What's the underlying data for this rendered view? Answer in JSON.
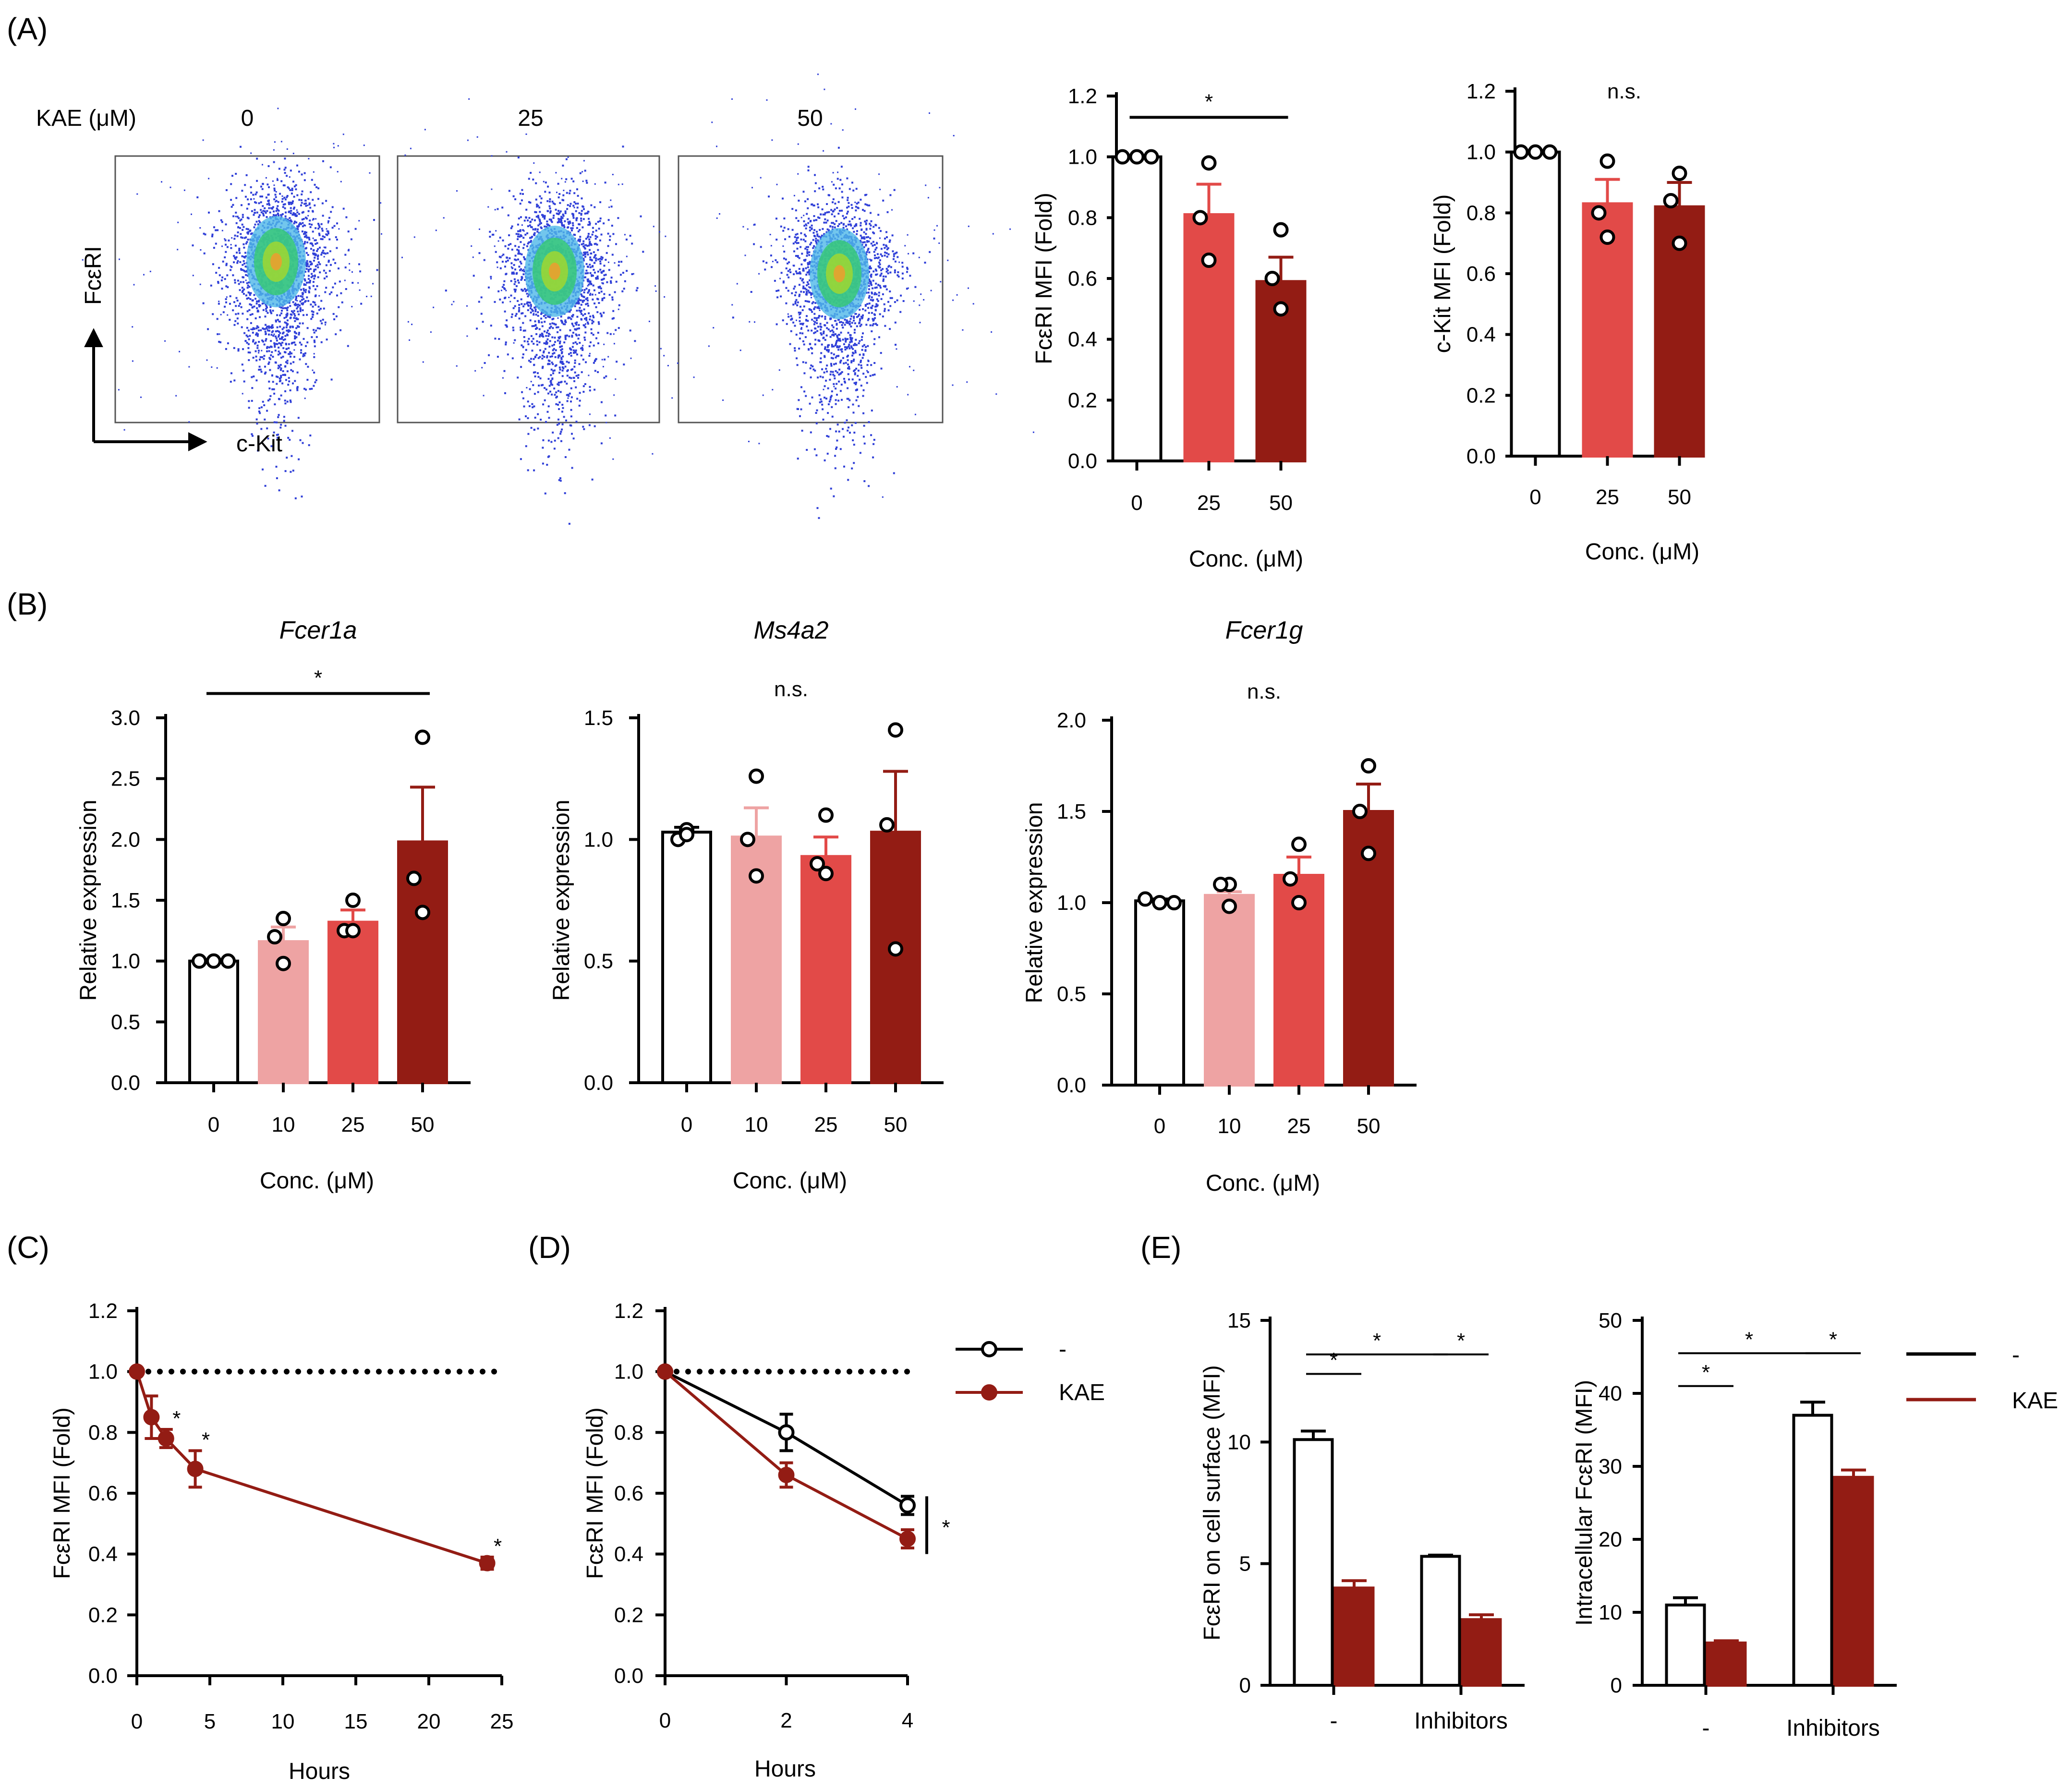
{
  "figure": {
    "panel_labels": {
      "A": "(A)",
      "B": "(B)",
      "C": "(C)",
      "D": "(D)",
      "E": "(E)"
    },
    "flow": {
      "kae_label": "KAE (μM)",
      "concs": [
        "0",
        "25",
        "50"
      ],
      "y_label": "FcεRI",
      "x_label": "c-Kit"
    }
  },
  "colors": {
    "white": "#ffffff",
    "light": "#eea3a3",
    "mid": "#e24a48",
    "dark": "#931c14",
    "black": "#000000"
  },
  "chart_data": [
    {
      "id": "a1",
      "type": "bar",
      "panel": "A",
      "ylabel": "FcεRI MFI (Fold)",
      "xlabel": "Conc. (μM)",
      "categories": [
        "0",
        "25",
        "50"
      ],
      "values": [
        1.0,
        0.81,
        0.59
      ],
      "errors": [
        0.0,
        0.1,
        0.08
      ],
      "points": [
        [
          1.0,
          1.0,
          1.0
        ],
        [
          0.98,
          0.8,
          0.66
        ],
        [
          0.76,
          0.6,
          0.5
        ]
      ],
      "colors": [
        "white",
        "mid",
        "dark"
      ],
      "ylim": [
        0,
        1.2
      ],
      "yticks": [
        "0.0",
        "0.2",
        "0.4",
        "0.6",
        "0.8",
        "1.0",
        "1.2"
      ],
      "sig": [
        {
          "from": 0,
          "to": 2,
          "y": 1.13,
          "label": "*"
        }
      ]
    },
    {
      "id": "a2",
      "type": "bar",
      "panel": "A",
      "ylabel": "c-Kit MFI (Fold)",
      "xlabel": "Conc. (μM)",
      "categories": [
        "0",
        "25",
        "50"
      ],
      "values": [
        1.0,
        0.83,
        0.82
      ],
      "errors": [
        0.0,
        0.08,
        0.08
      ],
      "points": [
        [
          1.0,
          1.0,
          1.0
        ],
        [
          0.97,
          0.8,
          0.72
        ],
        [
          0.93,
          0.84,
          0.7
        ]
      ],
      "colors": [
        "white",
        "mid",
        "dark"
      ],
      "ylim": [
        0,
        1.2
      ],
      "yticks": [
        "0.0",
        "0.2",
        "0.4",
        "0.6",
        "0.8",
        "1.0",
        "1.2"
      ],
      "sig_text": "n.s."
    },
    {
      "id": "b1",
      "type": "bar",
      "panel": "B",
      "title": "Fcer1a",
      "ylabel": "Relative expression",
      "xlabel": "Conc. (μM)",
      "categories": [
        "0",
        "10",
        "25",
        "50"
      ],
      "values": [
        1.0,
        1.16,
        1.32,
        1.98
      ],
      "errors": [
        0.0,
        0.12,
        0.1,
        0.45
      ],
      "points": [
        [
          1.0,
          1.0,
          1.0
        ],
        [
          1.35,
          1.2,
          0.98
        ],
        [
          1.5,
          1.25,
          1.25
        ],
        [
          2.84,
          1.68,
          1.4
        ]
      ],
      "colors": [
        "white",
        "light",
        "mid",
        "dark"
      ],
      "ylim": [
        0,
        3.0
      ],
      "yticks": [
        "0.0",
        "0.5",
        "1.0",
        "1.5",
        "2.0",
        "2.5",
        "3.0"
      ],
      "sig": [
        {
          "from": 0,
          "to": 3,
          "y": 3.2,
          "label": "*"
        }
      ]
    },
    {
      "id": "b2",
      "type": "bar",
      "panel": "B",
      "title": "Ms4a2",
      "ylabel": "Relative expression",
      "xlabel": "Conc. (μM)",
      "categories": [
        "0",
        "10",
        "25",
        "50"
      ],
      "values": [
        1.03,
        1.01,
        0.93,
        1.03
      ],
      "errors": [
        0.02,
        0.12,
        0.08,
        0.25
      ],
      "points": [
        [
          1.04,
          1.0,
          1.02
        ],
        [
          1.26,
          1.0,
          0.85
        ],
        [
          1.1,
          0.9,
          0.86
        ],
        [
          1.45,
          1.06,
          0.55
        ]
      ],
      "colors": [
        "white",
        "light",
        "mid",
        "dark"
      ],
      "ylim": [
        0,
        1.5
      ],
      "yticks": [
        "0.0",
        "0.5",
        "1.0",
        "1.5"
      ],
      "sig_text": "n.s."
    },
    {
      "id": "b3",
      "type": "bar",
      "panel": "B",
      "title": "Fcer1g",
      "ylabel": "Relative expression",
      "xlabel": "Conc. (μM)",
      "categories": [
        "0",
        "10",
        "25",
        "50"
      ],
      "values": [
        1.01,
        1.04,
        1.15,
        1.5
      ],
      "errors": [
        0.01,
        0.02,
        0.1,
        0.15
      ],
      "points": [
        [
          1.02,
          1.0,
          1.0
        ],
        [
          1.1,
          1.1,
          0.98
        ],
        [
          1.32,
          1.13,
          1.0
        ],
        [
          1.75,
          1.5,
          1.27
        ]
      ],
      "colors": [
        "white",
        "light",
        "mid",
        "dark"
      ],
      "ylim": [
        0,
        2.0
      ],
      "yticks": [
        "0.0",
        "0.5",
        "1.0",
        "1.5",
        "2.0"
      ],
      "sig_text": "n.s."
    },
    {
      "id": "c",
      "type": "line",
      "panel": "C",
      "ylabel": "FcεRI MFI (Fold)",
      "xlabel": "Hours",
      "xlim": [
        0,
        25
      ],
      "xticks": [
        "0",
        "5",
        "10",
        "15",
        "20",
        "25"
      ],
      "ylim": [
        0,
        1.2
      ],
      "yticks": [
        "0.0",
        "0.2",
        "0.4",
        "0.6",
        "0.8",
        "1.0",
        "1.2"
      ],
      "reference_y": 1.0,
      "series": [
        {
          "name": "KAE",
          "color": "dark",
          "x": [
            0,
            1,
            2,
            4,
            24
          ],
          "y": [
            1.0,
            0.85,
            0.78,
            0.68,
            0.37
          ],
          "errors": [
            0.0,
            0.07,
            0.03,
            0.06,
            0.02
          ],
          "sig": [
            "",
            "",
            "*",
            "*",
            "*"
          ]
        }
      ]
    },
    {
      "id": "d",
      "type": "line",
      "panel": "D",
      "ylabel": "FcεRI MFI (Fold)",
      "xlabel": "Hours",
      "xlim": [
        0,
        4
      ],
      "xticks": [
        "0",
        "2",
        "4"
      ],
      "ylim": [
        0,
        1.2
      ],
      "yticks": [
        "0.0",
        "0.2",
        "0.4",
        "0.6",
        "0.8",
        "1.0",
        "1.2"
      ],
      "reference_y": 1.0,
      "series": [
        {
          "name": "-",
          "color": "black",
          "open": true,
          "x": [
            0,
            2,
            4
          ],
          "y": [
            1.0,
            0.8,
            0.56
          ],
          "errors": [
            0.0,
            0.06,
            0.03
          ]
        },
        {
          "name": "KAE",
          "color": "dark",
          "x": [
            0,
            2,
            4
          ],
          "y": [
            1.0,
            0.66,
            0.45
          ],
          "errors": [
            0.0,
            0.04,
            0.03
          ]
        }
      ],
      "bracket_label": "*",
      "legend": [
        "-",
        "KAE"
      ]
    },
    {
      "id": "e1",
      "type": "bar",
      "panel": "E",
      "ylabel": "FcεRI on cell surface (MFI)",
      "groups": [
        "-",
        "Inhibitors"
      ],
      "series": [
        {
          "name": "-",
          "values": [
            10.1,
            5.3
          ],
          "errors": [
            0.35,
            0.05
          ]
        },
        {
          "name": "KAE",
          "values": [
            4.0,
            2.7
          ],
          "errors": [
            0.3,
            0.2
          ]
        }
      ],
      "ylim": [
        0,
        15
      ],
      "yticks": [
        "0",
        "5",
        "10",
        "15"
      ],
      "sig": [
        {
          "label": "*",
          "y": 12.8
        },
        {
          "label": "*",
          "y": 13.6
        },
        {
          "label": "*",
          "y": 13.6
        }
      ]
    },
    {
      "id": "e2",
      "type": "bar",
      "panel": "E",
      "ylabel": "Intracellular FcεRI (MFI)",
      "groups": [
        "-",
        "Inhibitors"
      ],
      "series": [
        {
          "name": "-",
          "values": [
            11.0,
            37.0
          ],
          "errors": [
            1.0,
            1.8
          ]
        },
        {
          "name": "KAE",
          "values": [
            5.8,
            28.5
          ],
          "errors": [
            0.3,
            1.0
          ]
        }
      ],
      "ylim": [
        0,
        50
      ],
      "yticks": [
        "0",
        "10",
        "20",
        "30",
        "40",
        "50"
      ],
      "sig": [
        {
          "label": "*",
          "y": 41
        },
        {
          "label": "*",
          "y": 45.5
        },
        {
          "label": "*",
          "y": 45.5
        }
      ],
      "legend": [
        "-",
        "KAE"
      ]
    }
  ]
}
